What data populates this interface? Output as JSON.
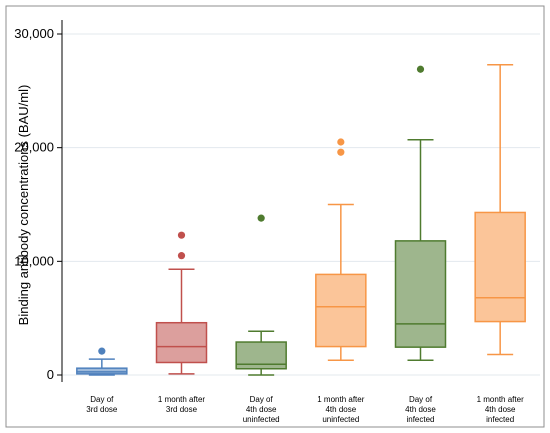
{
  "chart_data": {
    "type": "box",
    "ylabel": "Binding antibody concentrations (BAU/ml)",
    "ylim": [
      0,
      30000
    ],
    "yticks": [
      0,
      10000,
      20000,
      30000
    ],
    "ytick_labels": [
      "0",
      "10,000",
      "20,000",
      "30,000"
    ],
    "grid": true,
    "groups": [
      {
        "label_lines": [
          "Day of",
          "3rd dose"
        ],
        "color": "#4f81bd",
        "min": 0,
        "q1": 100,
        "median": 280,
        "q3": 600,
        "max": 1400,
        "outliers": [
          2100
        ]
      },
      {
        "label_lines": [
          "1 month after",
          "3rd dose"
        ],
        "color": "#c0504d",
        "min": 100,
        "q1": 1100,
        "median": 2500,
        "q3": 4600,
        "max": 9300,
        "outliers": [
          10500,
          12300
        ]
      },
      {
        "label_lines": [
          "Day of",
          "4th dose",
          "uninfected"
        ],
        "color": "#4f7b2f",
        "min": 0,
        "q1": 550,
        "median": 950,
        "q3": 2900,
        "max": 3850,
        "outliers": [
          13800
        ]
      },
      {
        "label_lines": [
          "1 month after",
          "4th dose",
          "uninfected"
        ],
        "color": "#f79646",
        "min": 1300,
        "q1": 2500,
        "median": 6000,
        "q3": 8850,
        "max": 15000,
        "outliers": [
          19600,
          20500
        ]
      },
      {
        "label_lines": [
          "Day of",
          "4th dose",
          "infected"
        ],
        "color": "#4f7b2f",
        "min": 1300,
        "q1": 2450,
        "median": 4500,
        "q3": 11800,
        "max": 20700,
        "outliers": [
          26900
        ]
      },
      {
        "label_lines": [
          "1 month after",
          "4th dose",
          "infected"
        ],
        "color": "#f79646",
        "min": 1800,
        "q1": 4700,
        "median": 6800,
        "q3": 14300,
        "max": 27300,
        "outliers": []
      }
    ]
  }
}
